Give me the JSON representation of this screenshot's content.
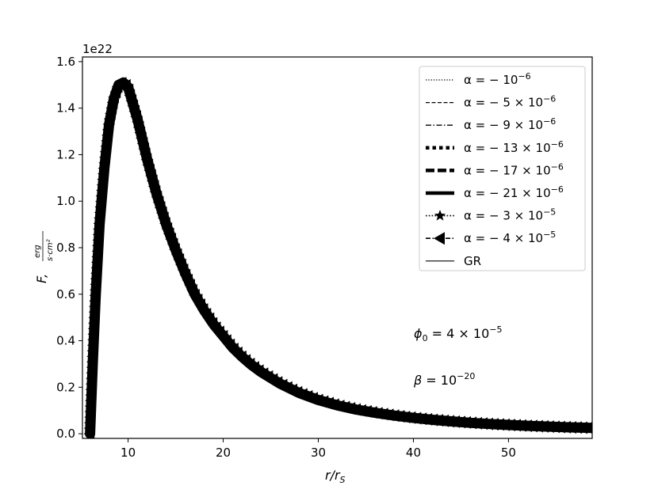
{
  "chart_data": {
    "type": "line",
    "xlabel_main": "r/r",
    "xlabel_sub": "S",
    "ylabel_main": "F,",
    "ylabel_num": "erg",
    "ylabel_den": "s·cm²",
    "offset_label": "1e22",
    "xlim": [
      5.2,
      58.8
    ],
    "ylim": [
      -0.02,
      1.62
    ],
    "xticks": [
      {
        "value": 10,
        "label": "10"
      },
      {
        "value": 20,
        "label": "20"
      },
      {
        "value": 30,
        "label": "30"
      },
      {
        "value": 40,
        "label": "40"
      },
      {
        "value": 50,
        "label": "50"
      }
    ],
    "yticks": [
      {
        "value": 0.0,
        "label": "0.0"
      },
      {
        "value": 0.2,
        "label": "0.2"
      },
      {
        "value": 0.4,
        "label": "0.4"
      },
      {
        "value": 0.6,
        "label": "0.6"
      },
      {
        "value": 0.8,
        "label": "0.8"
      },
      {
        "value": 1.0,
        "label": "1.0"
      },
      {
        "value": 1.2,
        "label": "1.2"
      },
      {
        "value": 1.4,
        "label": "1.4"
      },
      {
        "value": 1.6,
        "label": "1.6"
      }
    ],
    "legend_position": "top-right",
    "legend": [
      {
        "id": "a1",
        "style": "dotted",
        "label_pre": "α = − 10",
        "sup": "−6"
      },
      {
        "id": "a5",
        "style": "dashed",
        "label_pre": "α = − 5 × 10",
        "sup": "−6"
      },
      {
        "id": "a9",
        "style": "dashdot",
        "label_pre": "α = − 9 × 10",
        "sup": "−6"
      },
      {
        "id": "a13",
        "style": "thick-dotted",
        "label_pre": "α = − 13 × 10",
        "sup": "−6"
      },
      {
        "id": "a17",
        "style": "thick-dashed",
        "label_pre": "α = − 17 × 10",
        "sup": "−6"
      },
      {
        "id": "a21",
        "style": "thick-solid",
        "label_pre": "α = − 21 × 10",
        "sup": "−6"
      },
      {
        "id": "a30",
        "style": "dotted-star",
        "label_pre": "α = − 3 × 10",
        "sup": "−5"
      },
      {
        "id": "a40",
        "style": "dashdot-triangle",
        "label_pre": "α = − 4 × 10",
        "sup": "−5"
      },
      {
        "id": "gr",
        "style": "solid",
        "label_pre": "GR",
        "sup": ""
      }
    ],
    "annotations": [
      {
        "id": "phi",
        "pre": "ϕ",
        "sub": "0",
        "mid": " = 4 × 10",
        "sup": "−5"
      },
      {
        "id": "beta",
        "pre": "β",
        "sub": "",
        "mid": " = 10",
        "sup": "−20"
      }
    ],
    "curve": {
      "x": [
        6.0,
        6.3,
        6.6,
        7.0,
        7.5,
        8.0,
        8.5,
        9.0,
        9.5,
        10.0,
        10.5,
        11.0,
        12.0,
        13.0,
        14.0,
        15.0,
        16.0,
        17.0,
        18.0,
        19.0,
        20.0,
        21.0,
        22.0,
        23.0,
        24.0,
        25.0,
        26.0,
        28.0,
        30.0,
        32.0,
        34.0,
        36.0,
        38.0,
        40.0,
        42.0,
        44.0,
        46.0,
        48.0,
        50.0,
        52.0,
        54.0,
        56.0,
        58.8
      ],
      "y": [
        0.0,
        0.32,
        0.6,
        0.9,
        1.14,
        1.33,
        1.44,
        1.5,
        1.51,
        1.49,
        1.42,
        1.35,
        1.18,
        1.03,
        0.9,
        0.79,
        0.69,
        0.6,
        0.53,
        0.47,
        0.42,
        0.37,
        0.33,
        0.295,
        0.265,
        0.24,
        0.215,
        0.175,
        0.145,
        0.122,
        0.104,
        0.09,
        0.078,
        0.068,
        0.06,
        0.053,
        0.047,
        0.042,
        0.038,
        0.034,
        0.031,
        0.028,
        0.025
      ]
    }
  }
}
